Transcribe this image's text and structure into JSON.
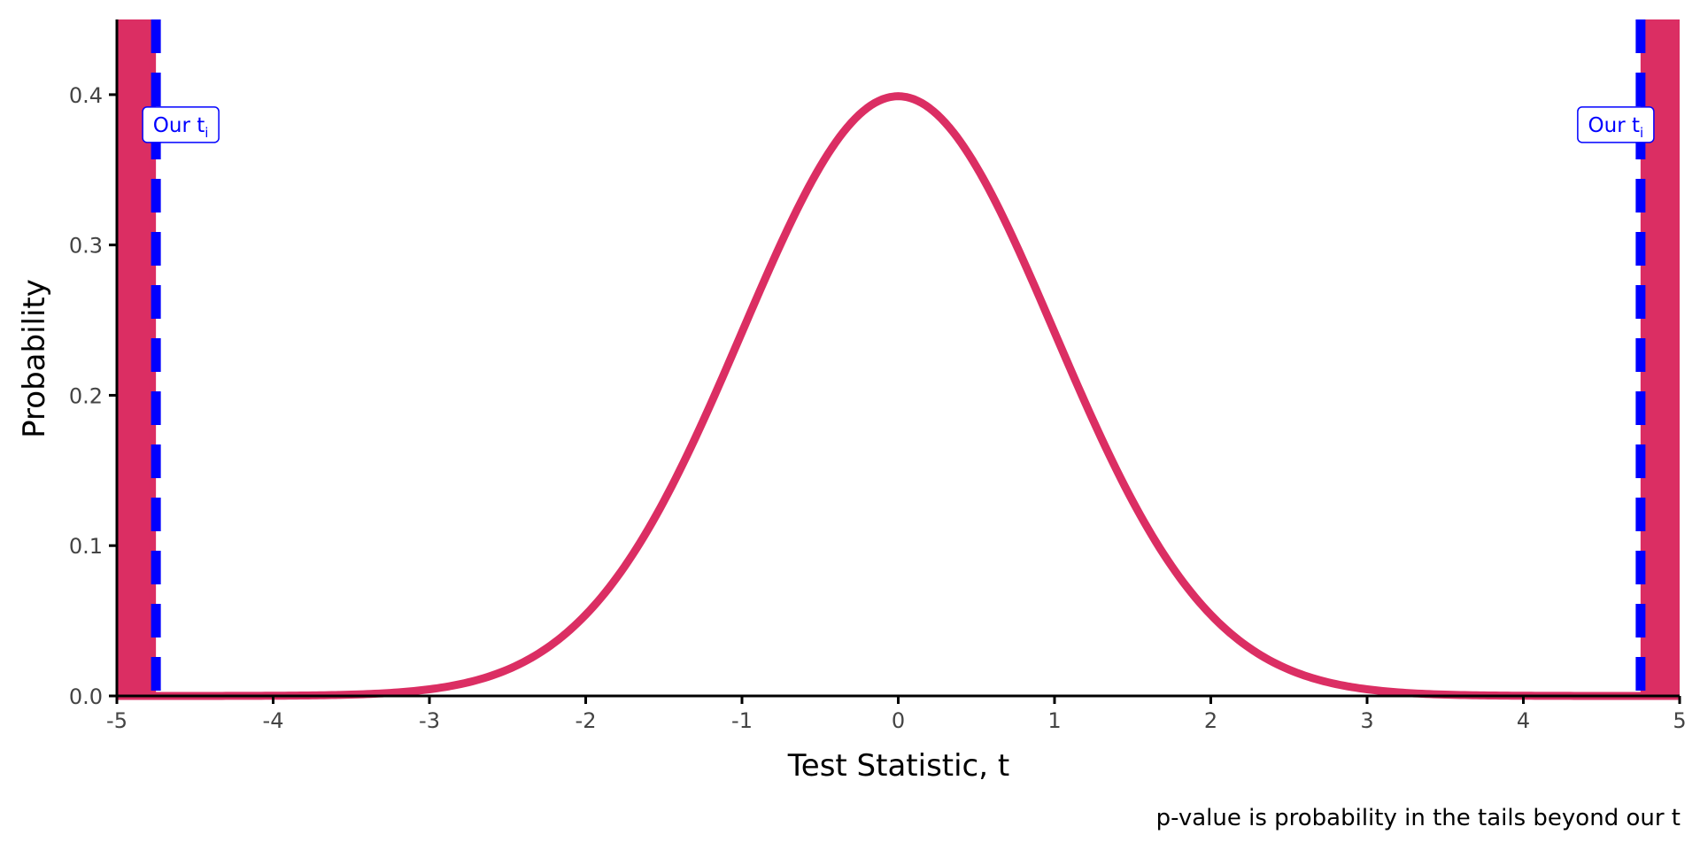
{
  "chart_data": {
    "type": "line",
    "title": "",
    "xlabel": "Test Statistic, t",
    "ylabel": "Probability",
    "caption": "p-value is probability in the tails beyond our t",
    "xlim": [
      -5,
      5
    ],
    "ylim": [
      0,
      0.45
    ],
    "x_ticks": [
      -5,
      -4,
      -3,
      -2,
      -1,
      0,
      1,
      2,
      3,
      4,
      5
    ],
    "x_tick_labels": [
      "-5",
      "-4",
      "-3",
      "-2",
      "-1",
      "0",
      "1",
      "2",
      "3",
      "4",
      "5"
    ],
    "y_ticks": [
      0.0,
      0.1,
      0.2,
      0.3,
      0.4
    ],
    "y_tick_labels": [
      "0.0",
      "0.1",
      "0.2",
      "0.3",
      "0.4"
    ],
    "grid": false,
    "legend": "none",
    "series": [
      {
        "x": [
          -5.0,
          -4.5,
          -4.0,
          -3.5,
          -3.0,
          -2.75,
          -2.5,
          -2.25,
          -2.0,
          -1.75,
          -1.5,
          -1.25,
          -1.0,
          -0.75,
          -0.5,
          -0.25,
          0.0,
          0.25,
          0.5,
          0.75,
          1.0,
          1.25,
          1.5,
          1.75,
          2.0,
          2.25,
          2.5,
          2.75,
          3.0,
          3.5,
          4.0,
          4.5,
          5.0
        ],
        "y": [
          0.0,
          0.0,
          0.0001,
          0.0009,
          0.0044,
          0.0091,
          0.0175,
          0.0317,
          0.054,
          0.0863,
          0.1295,
          0.1826,
          0.242,
          0.3011,
          0.3521,
          0.3867,
          0.3989,
          0.3867,
          0.3521,
          0.3011,
          0.242,
          0.1826,
          0.1295,
          0.0863,
          0.054,
          0.0317,
          0.0175,
          0.0091,
          0.0044,
          0.0009,
          0.0001,
          0.0,
          0.0
        ]
      }
    ],
    "observed_t": [
      -4.75,
      4.75
    ],
    "shaded_tails": [
      [
        -5,
        -4.75
      ],
      [
        4.75,
        5
      ]
    ],
    "annotation": {
      "text": "Our t",
      "subscript": "i",
      "y": 0.38
    },
    "colors": {
      "curve": "#DB2E63",
      "tail_fill": "#DB2E63",
      "observed_line": "#0000FF",
      "axis": "#000000",
      "tick_text": "#444444"
    }
  }
}
